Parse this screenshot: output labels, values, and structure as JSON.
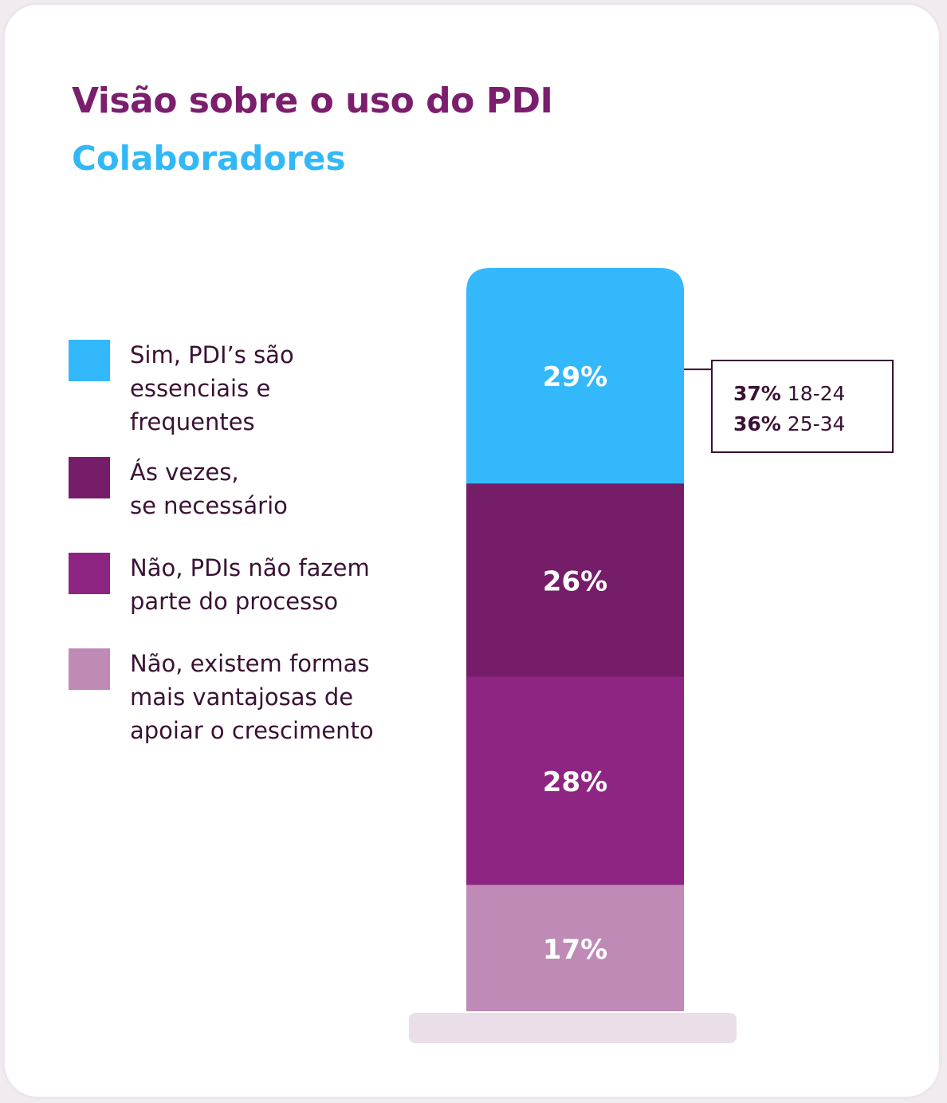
{
  "header": {
    "title": "Visão sobre o uso do PDI",
    "subtitle": "Colaboradores"
  },
  "colors": {
    "sim": "#33b8fc",
    "as_vezes": "#761d69",
    "nao_fazem_parte": "#8e2582",
    "nao_existem": "#bf8ab5",
    "base": "#eadfe9",
    "title": "#7b1e6e",
    "subtitle": "#33b8f7"
  },
  "legend": [
    {
      "label": "Sim, PDI’s são\nessenciais e\nfrequentes",
      "color": "#33b8fc"
    },
    {
      "label": "Ás vezes,\nse necessário",
      "color": "#761d69"
    },
    {
      "label": "Não, PDIs não fazem\nparte do processo",
      "color": "#8e2582"
    },
    {
      "label": "Não, existem formas\nmais vantajosas de\napoiar o crescimento",
      "color": "#bf8ab5"
    }
  ],
  "callout": {
    "rows": [
      {
        "pct": "37%",
        "age": "18-24"
      },
      {
        "pct": "36%",
        "age": "25-34"
      }
    ]
  },
  "chart_data": {
    "type": "bar",
    "stacked": true,
    "categories": [
      "Colaboradores"
    ],
    "series": [
      {
        "name": "Sim, PDI’s são essenciais e frequentes",
        "values": [
          29
        ],
        "label": "29%",
        "color": "#33b8fc"
      },
      {
        "name": "Ás vezes, se necessário",
        "values": [
          26
        ],
        "label": "26%",
        "color": "#761d69"
      },
      {
        "name": "Não, PDIs não fazem parte do processo",
        "values": [
          28
        ],
        "label": "28%",
        "color": "#8e2582"
      },
      {
        "name": "Não, existem formas mais vantajosas de apoiar o crescimento",
        "values": [
          17
        ],
        "label": "17%",
        "color": "#bf8ab5"
      }
    ],
    "title": "Visão sobre o uso do PDI",
    "subtitle": "Colaboradores",
    "ylim": [
      0,
      100
    ],
    "grid": false,
    "legend_position": "left",
    "annotations": [
      {
        "series": "Sim, PDI’s são essenciais e frequentes",
        "text": "37% 18-24"
      },
      {
        "series": "Sim, PDI’s são essenciais e frequentes",
        "text": "36% 25-34"
      }
    ]
  }
}
